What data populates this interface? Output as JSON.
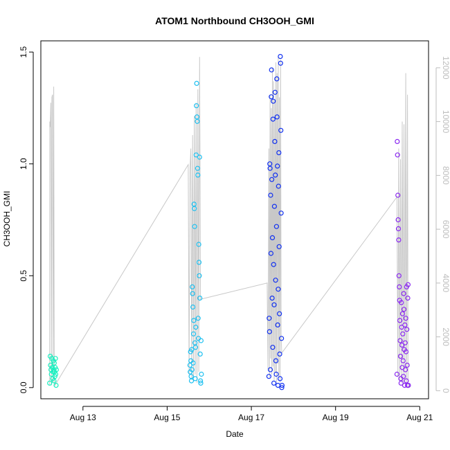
{
  "chart_data": {
    "type": "scatter",
    "title": "ATOM1 Northbound CH3OOH_GMI",
    "xlabel": "Date",
    "ylabel": "CH3OOH_GMI",
    "x_ticks": [
      "Aug 13",
      "Aug 15",
      "Aug 17",
      "Aug 19",
      "Aug 21"
    ],
    "y_ticks": [
      "0.0",
      "0.5",
      "1.0",
      "1.5"
    ],
    "y2_ticks": [
      "0",
      "2000",
      "4000",
      "6000",
      "8000",
      "10000",
      "12000"
    ],
    "xlim": [
      "2016-08-12 00:00",
      "2016-08-21 05:00"
    ],
    "ylim": [
      -0.05,
      1.55
    ],
    "y2lim": [
      -300,
      13000
    ],
    "grid": false,
    "colors": {
      "flight1": "#19f0c0",
      "flight2": "#1ec0f0",
      "flight3": "#1030f0",
      "flight4": "#8a28f0",
      "altitude_line": "#c8c8c8",
      "right_axis": "#bdbdbd"
    },
    "series": [
      {
        "color": "#19f0c0",
        "points": [
          [
            "2016-08-12 05:00",
            0.02
          ],
          [
            "2016-08-12 05:20",
            0.14
          ],
          [
            "2016-08-12 05:30",
            0.1
          ],
          [
            "2016-08-12 05:45",
            0.08
          ],
          [
            "2016-08-12 06:00",
            0.06
          ],
          [
            "2016-08-12 06:15",
            0.13
          ],
          [
            "2016-08-12 06:30",
            0.09
          ],
          [
            "2016-08-12 06:45",
            0.04
          ],
          [
            "2016-08-12 07:00",
            0.07
          ],
          [
            "2016-08-12 07:10",
            0.12
          ],
          [
            "2016-08-12 07:20",
            0.08
          ],
          [
            "2016-08-12 07:30",
            0.03
          ],
          [
            "2016-08-12 07:40",
            0.11
          ],
          [
            "2016-08-12 07:50",
            0.07
          ],
          [
            "2016-08-12 08:00",
            0.05
          ],
          [
            "2016-08-12 08:10",
            0.09
          ],
          [
            "2016-08-12 08:20",
            0.13
          ],
          [
            "2016-08-12 08:30",
            0.06
          ],
          [
            "2016-08-12 08:40",
            0.01
          ],
          [
            "2016-08-12 08:50",
            0.08
          ]
        ]
      },
      {
        "color": "#1ec0f0",
        "points": [
          [
            "2016-08-15 13:00",
            0.1
          ],
          [
            "2016-08-15 13:10",
            0.07
          ],
          [
            "2016-08-15 13:20",
            0.16
          ],
          [
            "2016-08-15 13:30",
            0.12
          ],
          [
            "2016-08-15 13:40",
            0.05
          ],
          [
            "2016-08-15 13:50",
            0.03
          ],
          [
            "2016-08-15 14:00",
            0.17
          ],
          [
            "2016-08-15 14:10",
            0.08
          ],
          [
            "2016-08-15 14:20",
            0.45
          ],
          [
            "2016-08-15 14:30",
            0.42
          ],
          [
            "2016-08-15 14:40",
            0.36
          ],
          [
            "2016-08-15 14:50",
            0.11
          ],
          [
            "2016-08-15 15:00",
            0.24
          ],
          [
            "2016-08-15 15:10",
            0.3
          ],
          [
            "2016-08-15 15:20",
            0.82
          ],
          [
            "2016-08-15 15:30",
            0.8
          ],
          [
            "2016-08-15 15:40",
            0.72
          ],
          [
            "2016-08-15 15:50",
            0.2
          ],
          [
            "2016-08-15 16:00",
            0.04
          ],
          [
            "2016-08-15 16:10",
            0.18
          ],
          [
            "2016-08-15 16:20",
            0.27
          ],
          [
            "2016-08-15 16:30",
            1.04
          ],
          [
            "2016-08-15 16:40",
            1.26
          ],
          [
            "2016-08-15 16:50",
            1.36
          ],
          [
            "2016-08-15 17:00",
            1.21
          ],
          [
            "2016-08-15 17:10",
            1.19
          ],
          [
            "2016-08-15 17:20",
            0.98
          ],
          [
            "2016-08-15 17:30",
            0.95
          ],
          [
            "2016-08-15 17:40",
            0.31
          ],
          [
            "2016-08-15 17:50",
            0.22
          ],
          [
            "2016-08-15 18:00",
            0.64
          ],
          [
            "2016-08-15 18:10",
            0.56
          ],
          [
            "2016-08-15 18:20",
            0.5
          ],
          [
            "2016-08-15 18:30",
            1.03
          ],
          [
            "2016-08-15 18:40",
            0.4
          ],
          [
            "2016-08-15 18:50",
            0.15
          ],
          [
            "2016-08-15 19:00",
            0.03
          ],
          [
            "2016-08-15 19:10",
            0.02
          ],
          [
            "2016-08-15 19:20",
            0.21
          ],
          [
            "2016-08-15 19:30",
            0.06
          ]
        ]
      },
      {
        "color": "#1030f0",
        "points": [
          [
            "2016-08-17 10:00",
            0.05
          ],
          [
            "2016-08-17 10:10",
            0.31
          ],
          [
            "2016-08-17 10:20",
            0.25
          ],
          [
            "2016-08-17 10:30",
            1.0
          ],
          [
            "2016-08-17 10:40",
            0.98
          ],
          [
            "2016-08-17 10:50",
            0.08
          ],
          [
            "2016-08-17 11:00",
            0.86
          ],
          [
            "2016-08-17 11:10",
            0.6
          ],
          [
            "2016-08-17 11:20",
            1.3
          ],
          [
            "2016-08-17 11:30",
            1.42
          ],
          [
            "2016-08-17 11:40",
            0.93
          ],
          [
            "2016-08-17 11:50",
            0.4
          ],
          [
            "2016-08-17 12:00",
            0.67
          ],
          [
            "2016-08-17 12:10",
            0.18
          ],
          [
            "2016-08-17 12:20",
            1.2
          ],
          [
            "2016-08-17 12:30",
            1.28
          ],
          [
            "2016-08-17 12:40",
            0.55
          ],
          [
            "2016-08-17 12:50",
            0.02
          ],
          [
            "2016-08-17 13:00",
            0.37
          ],
          [
            "2016-08-17 13:10",
            0.81
          ],
          [
            "2016-08-17 13:20",
            1.1
          ],
          [
            "2016-08-17 13:30",
            1.32
          ],
          [
            "2016-08-17 13:40",
            0.95
          ],
          [
            "2016-08-17 13:50",
            0.48
          ],
          [
            "2016-08-17 14:00",
            0.12
          ],
          [
            "2016-08-17 14:10",
            0.06
          ],
          [
            "2016-08-17 14:20",
            0.72
          ],
          [
            "2016-08-17 14:30",
            1.38
          ],
          [
            "2016-08-17 14:40",
            1.21
          ],
          [
            "2016-08-17 14:50",
            0.99
          ],
          [
            "2016-08-17 15:00",
            0.28
          ],
          [
            "2016-08-17 15:10",
            0.01
          ],
          [
            "2016-08-17 15:20",
            0.44
          ],
          [
            "2016-08-17 15:30",
            0.9
          ],
          [
            "2016-08-17 15:40",
            1.05
          ],
          [
            "2016-08-17 15:50",
            0.63
          ],
          [
            "2016-08-17 16:00",
            0.33
          ],
          [
            "2016-08-17 16:10",
            0.15
          ],
          [
            "2016-08-17 16:20",
            0.04
          ],
          [
            "2016-08-17 16:30",
            1.48
          ],
          [
            "2016-08-17 16:40",
            1.45
          ],
          [
            "2016-08-17 16:50",
            1.15
          ],
          [
            "2016-08-17 17:00",
            0.78
          ],
          [
            "2016-08-17 17:10",
            0.22
          ],
          [
            "2016-08-17 17:20",
            0.0
          ],
          [
            "2016-08-17 17:30",
            0.01
          ]
        ]
      },
      {
        "color": "#8a28f0",
        "points": [
          [
            "2016-08-20 11:00",
            0.06
          ],
          [
            "2016-08-20 11:10",
            1.1
          ],
          [
            "2016-08-20 11:20",
            1.04
          ],
          [
            "2016-08-20 11:30",
            0.86
          ],
          [
            "2016-08-20 11:40",
            0.75
          ],
          [
            "2016-08-20 11:50",
            0.71
          ],
          [
            "2016-08-20 12:00",
            0.66
          ],
          [
            "2016-08-20 12:10",
            0.5
          ],
          [
            "2016-08-20 12:20",
            0.45
          ],
          [
            "2016-08-20 12:30",
            0.39
          ],
          [
            "2016-08-20 12:40",
            0.3
          ],
          [
            "2016-08-20 12:50",
            0.21
          ],
          [
            "2016-08-20 13:00",
            0.14
          ],
          [
            "2016-08-20 13:10",
            0.04
          ],
          [
            "2016-08-20 13:20",
            0.02
          ],
          [
            "2016-08-20 13:30",
            0.38
          ],
          [
            "2016-08-20 13:40",
            0.27
          ],
          [
            "2016-08-20 13:50",
            0.19
          ],
          [
            "2016-08-20 14:00",
            0.09
          ],
          [
            "2016-08-20 14:10",
            0.33
          ],
          [
            "2016-08-20 14:20",
            0.24
          ],
          [
            "2016-08-20 14:30",
            0.12
          ],
          [
            "2016-08-20 14:40",
            0.05
          ],
          [
            "2016-08-20 14:50",
            0.42
          ],
          [
            "2016-08-20 15:00",
            0.35
          ],
          [
            "2016-08-20 15:10",
            0.17
          ],
          [
            "2016-08-20 15:20",
            0.01
          ],
          [
            "2016-08-20 15:30",
            0.28
          ],
          [
            "2016-08-20 15:40",
            0.2
          ],
          [
            "2016-08-20 15:50",
            0.08
          ],
          [
            "2016-08-20 16:00",
            0.31
          ],
          [
            "2016-08-20 16:10",
            0.16
          ],
          [
            "2016-08-20 16:20",
            0.03
          ],
          [
            "2016-08-20 16:30",
            0.45
          ],
          [
            "2016-08-20 16:40",
            0.26
          ],
          [
            "2016-08-20 16:50",
            0.1
          ],
          [
            "2016-08-20 17:00",
            0.01
          ],
          [
            "2016-08-20 17:10",
            0.4
          ],
          [
            "2016-08-20 17:20",
            0.46
          ],
          [
            "2016-08-20 17:30",
            0.01
          ]
        ]
      }
    ],
    "altitude_series": {
      "axis": "right",
      "points": [
        [
          "2016-08-12 05:00",
          200
        ],
        [
          "2016-08-12 05:05",
          10000
        ],
        [
          "2016-08-12 05:20",
          9800
        ],
        [
          "2016-08-12 05:40",
          10700
        ],
        [
          "2016-08-12 06:00",
          200
        ],
        [
          "2016-08-12 06:20",
          10900
        ],
        [
          "2016-08-12 06:40",
          11000
        ],
        [
          "2016-08-12 07:00",
          300
        ],
        [
          "2016-08-12 07:20",
          11300
        ],
        [
          "2016-08-12 07:40",
          500
        ],
        [
          "2016-08-12 08:00",
          200
        ],
        [
          "2016-08-15 12:00",
          8400
        ],
        [
          "2016-08-15 12:30",
          600
        ],
        [
          "2016-08-15 13:00",
          8200
        ],
        [
          "2016-08-15 13:30",
          9000
        ],
        [
          "2016-08-15 14:00",
          400
        ],
        [
          "2016-08-15 14:30",
          9500
        ],
        [
          "2016-08-15 15:00",
          500
        ],
        [
          "2016-08-15 15:30",
          10200
        ],
        [
          "2016-08-15 16:00",
          600
        ],
        [
          "2016-08-15 16:30",
          10700
        ],
        [
          "2016-08-15 17:00",
          300
        ],
        [
          "2016-08-15 17:30",
          11200
        ],
        [
          "2016-08-15 18:00",
          700
        ],
        [
          "2016-08-15 18:30",
          12400
        ],
        [
          "2016-08-15 19:00",
          3400
        ],
        [
          "2016-08-17 09:00",
          4000
        ],
        [
          "2016-08-17 09:30",
          800
        ],
        [
          "2016-08-17 10:00",
          9000
        ],
        [
          "2016-08-17 10:20",
          500
        ],
        [
          "2016-08-17 10:40",
          11000
        ],
        [
          "2016-08-17 11:00",
          1200
        ],
        [
          "2016-08-17 11:20",
          10500
        ],
        [
          "2016-08-17 11:40",
          600
        ],
        [
          "2016-08-17 12:00",
          12000
        ],
        [
          "2016-08-17 12:20",
          900
        ],
        [
          "2016-08-17 12:40",
          11500
        ],
        [
          "2016-08-17 13:00",
          400
        ],
        [
          "2016-08-17 13:20",
          10800
        ],
        [
          "2016-08-17 13:40",
          700
        ],
        [
          "2016-08-17 14:00",
          12200
        ],
        [
          "2016-08-17 14:20",
          300
        ],
        [
          "2016-08-17 14:40",
          11800
        ],
        [
          "2016-08-17 15:00",
          1000
        ],
        [
          "2016-08-17 15:20",
          12400
        ],
        [
          "2016-08-17 15:40",
          500
        ],
        [
          "2016-08-17 16:00",
          10900
        ],
        [
          "2016-08-17 16:20",
          300
        ],
        [
          "2016-08-17 16:40",
          12300
        ],
        [
          "2016-08-17 17:00",
          2000
        ],
        [
          "2016-08-17 17:20",
          1400
        ],
        [
          "2016-08-20 11:00",
          7200
        ],
        [
          "2016-08-20 11:30",
          500
        ],
        [
          "2016-08-20 12:00",
          9000
        ],
        [
          "2016-08-20 12:30",
          400
        ],
        [
          "2016-08-20 13:00",
          8600
        ],
        [
          "2016-08-20 13:30",
          300
        ],
        [
          "2016-08-20 14:00",
          10000
        ],
        [
          "2016-08-20 14:30",
          200
        ],
        [
          "2016-08-20 15:00",
          9900
        ],
        [
          "2016-08-20 15:30",
          300
        ],
        [
          "2016-08-20 16:00",
          11800
        ],
        [
          "2016-08-20 16:30",
          200
        ],
        [
          "2016-08-20 17:00",
          11000
        ],
        [
          "2016-08-20 17:20",
          100
        ]
      ]
    }
  }
}
